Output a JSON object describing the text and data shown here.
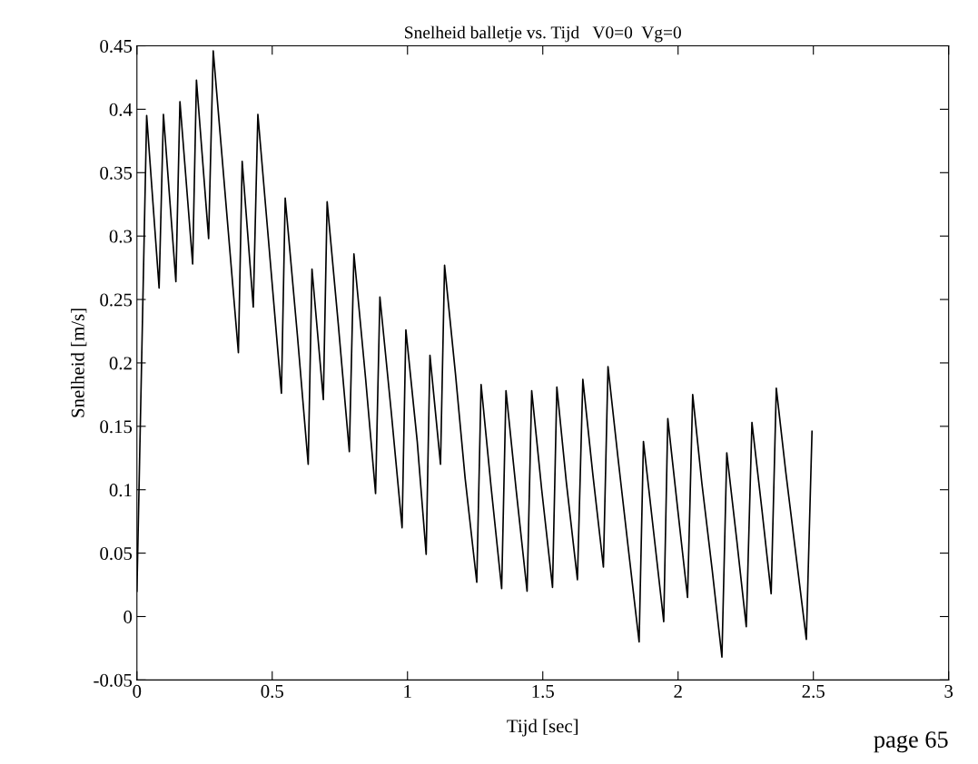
{
  "chart_data": {
    "type": "line",
    "title": "Snelheid balletje vs. Tijd   V0=0  Vg=0",
    "xlabel": "Tijd [sec]",
    "ylabel": "Snelheid [m/s]",
    "annotations": [
      "page 65"
    ],
    "xlim": [
      0,
      3
    ],
    "ylim": [
      -0.05,
      0.45
    ],
    "xticks": [
      0,
      0.5,
      1,
      1.5,
      2,
      2.5,
      3
    ],
    "yticks": [
      -0.05,
      0,
      0.05,
      0.1,
      0.15,
      0.2,
      0.25,
      0.3,
      0.35,
      0.4,
      0.45
    ],
    "grid": false,
    "marker": "none",
    "line_style": "solid",
    "series": [
      {
        "color": "#000000",
        "x": [
          0.0,
          0.036,
          0.082,
          0.098,
          0.144,
          0.159,
          0.206,
          0.22,
          0.265,
          0.282,
          0.375,
          0.389,
          0.43,
          0.447,
          0.534,
          0.548,
          0.593,
          0.633,
          0.647,
          0.689,
          0.703,
          0.744,
          0.785,
          0.802,
          0.845,
          0.882,
          0.898,
          0.941,
          0.98,
          0.994,
          1.036,
          1.069,
          1.083,
          1.122,
          1.137,
          1.177,
          1.213,
          1.256,
          1.272,
          1.309,
          1.348,
          1.364,
          1.402,
          1.442,
          1.459,
          1.496,
          1.536,
          1.552,
          1.587,
          1.628,
          1.648,
          1.685,
          1.724,
          1.741,
          1.778,
          1.817,
          1.856,
          1.872,
          1.91,
          1.947,
          1.962,
          1.999,
          2.035,
          2.054,
          2.088,
          2.126,
          2.162,
          2.18,
          2.217,
          2.252,
          2.273,
          2.31,
          2.344,
          2.363,
          2.398,
          2.436,
          2.474,
          2.495
        ],
        "values": [
          0.02,
          0.395,
          0.259,
          0.396,
          0.264,
          0.406,
          0.278,
          0.423,
          0.298,
          0.446,
          0.208,
          0.359,
          0.244,
          0.396,
          0.176,
          0.33,
          0.222,
          0.12,
          0.274,
          0.171,
          0.327,
          0.231,
          0.13,
          0.286,
          0.188,
          0.097,
          0.252,
          0.159,
          0.07,
          0.226,
          0.138,
          0.049,
          0.206,
          0.12,
          0.277,
          0.192,
          0.109,
          0.027,
          0.183,
          0.102,
          0.022,
          0.178,
          0.099,
          0.02,
          0.178,
          0.1,
          0.023,
          0.181,
          0.106,
          0.029,
          0.187,
          0.112,
          0.039,
          0.197,
          0.125,
          0.052,
          -0.02,
          0.138,
          0.066,
          -0.004,
          0.156,
          0.084,
          0.015,
          0.175,
          0.105,
          0.037,
          -0.032,
          0.129,
          0.06,
          -0.008,
          0.153,
          0.084,
          0.018,
          0.18,
          0.114,
          0.048,
          -0.018,
          0.146
        ]
      }
    ]
  }
}
